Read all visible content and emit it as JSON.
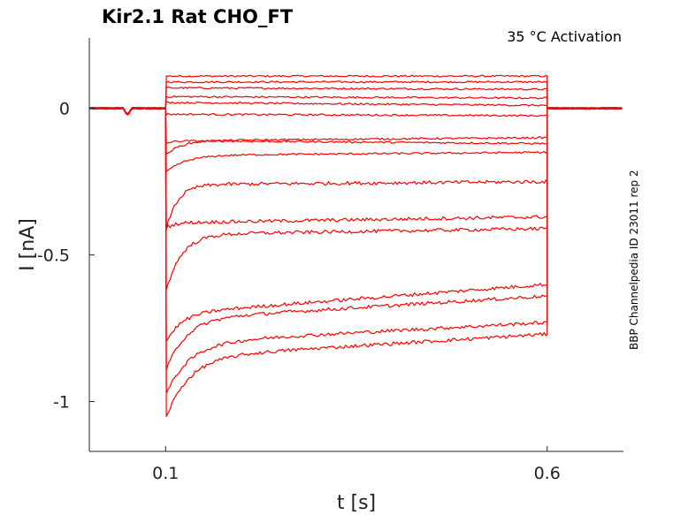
{
  "chart_data": {
    "type": "line",
    "title": "Kir2.1  Rat  CHO_FT",
    "annotation": "35 °C  Activation",
    "side_label": "BBP Channelpedia ID 23011 rep 2",
    "xlabel": "t [s]",
    "ylabel": "I [nA]",
    "xlim": [
      0.0,
      0.7
    ],
    "ylim": [
      -1.17,
      0.24
    ],
    "xticks": [
      0.1,
      0.6
    ],
    "xtick_labels": [
      "0.1",
      "0.6"
    ],
    "yticks": [
      0,
      -0.5,
      -1
    ],
    "ytick_labels": [
      "0",
      "-0.5",
      "-1"
    ],
    "grid": false,
    "color": "#ff0000",
    "step_start": 0.1,
    "step_end": 0.6,
    "baseline": 0.0,
    "series": [
      {
        "peak": 0.11,
        "steady": 0.11,
        "tau": 0.01,
        "end": 0.11
      },
      {
        "peak": 0.09,
        "steady": 0.09,
        "tau": 0.01,
        "end": 0.09
      },
      {
        "peak": 0.07,
        "steady": 0.07,
        "tau": 0.01,
        "end": 0.065
      },
      {
        "peak": 0.04,
        "steady": 0.04,
        "tau": 0.01,
        "end": 0.035
      },
      {
        "peak": 0.02,
        "steady": 0.02,
        "tau": 0.01,
        "end": 0.01
      },
      {
        "peak": -0.02,
        "steady": -0.02,
        "tau": 0.01,
        "end": -0.025
      },
      {
        "peak": -0.12,
        "steady": -0.11,
        "tau": 0.01,
        "end": -0.12
      },
      {
        "peak": -0.16,
        "steady": -0.11,
        "tau": 0.02,
        "end": -0.1
      },
      {
        "peak": -0.22,
        "steady": -0.16,
        "tau": 0.025,
        "end": -0.15
      },
      {
        "peak": -0.42,
        "steady": -0.26,
        "tau": 0.015,
        "end": -0.25
      },
      {
        "peak": -0.41,
        "steady": -0.39,
        "tau": 0.01,
        "end": -0.37
      },
      {
        "peak": -0.63,
        "steady": -0.43,
        "tau": 0.02,
        "end": -0.41
      },
      {
        "peak": -0.8,
        "steady": -0.7,
        "tau": 0.02,
        "end": -0.6
      },
      {
        "peak": -0.9,
        "steady": -0.72,
        "tau": 0.025,
        "end": -0.64
      },
      {
        "peak": -0.98,
        "steady": -0.8,
        "tau": 0.03,
        "end": -0.73
      },
      {
        "peak": -1.06,
        "steady": -0.85,
        "tau": 0.03,
        "end": -0.77
      }
    ]
  }
}
